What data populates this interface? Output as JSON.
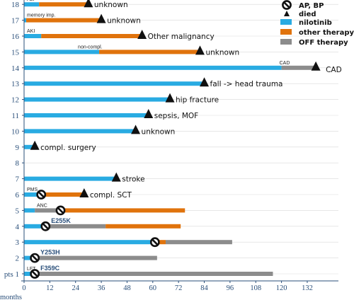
{
  "chart_data": {
    "type": "bar",
    "layout": "horizontal-swimmer",
    "xlabel": "months",
    "first_row_label": "pts 1",
    "xlim": [
      0,
      140
    ],
    "xticks": [
      0,
      12,
      24,
      36,
      48,
      60,
      72,
      84,
      96,
      108,
      120,
      132
    ],
    "legend": {
      "position": "top-right",
      "items": [
        {
          "key": "ap_bp",
          "label": "AP, BP",
          "symbol": "slashed-circle"
        },
        {
          "key": "died",
          "label": "died",
          "symbol": "triangle"
        },
        {
          "key": "nilotinib",
          "label": "nilotinib",
          "symbol": "bar"
        },
        {
          "key": "other",
          "label": "other therapy",
          "symbol": "bar"
        },
        {
          "key": "off",
          "label": "OFF therapy",
          "symbol": "bar"
        }
      ]
    },
    "colors": {
      "nilotinib": "#29abe2",
      "other": "#e0730c",
      "off": "#8c8c8c",
      "marker": "#111111",
      "axis": "#2a4f7a"
    },
    "patients": [
      {
        "id": "1",
        "segments": [
          {
            "phase": "nilotinib",
            "start": 0,
            "end": 7
          },
          {
            "phase": "off",
            "start": 7,
            "end": 116
          }
        ],
        "small_label": "LFT",
        "mutation": "F359C",
        "ap_bp": 5
      },
      {
        "id": "2",
        "segments": [
          {
            "phase": "nilotinib",
            "start": 0,
            "end": 7
          },
          {
            "phase": "off",
            "start": 7,
            "end": 62
          }
        ],
        "small_label": "",
        "mutation": "Y253H",
        "ap_bp": 5
      },
      {
        "id": "3",
        "segments": [
          {
            "phase": "nilotinib",
            "start": 0,
            "end": 63
          },
          {
            "phase": "other",
            "start": 63,
            "end": 66
          },
          {
            "phase": "off",
            "start": 66,
            "end": 97
          }
        ],
        "small_label": "",
        "mutation": "",
        "ap_bp": 61
      },
      {
        "id": "4",
        "segments": [
          {
            "phase": "nilotinib",
            "start": 0,
            "end": 11
          },
          {
            "phase": "off",
            "start": 11,
            "end": 38
          },
          {
            "phase": "other",
            "start": 38,
            "end": 73
          }
        ],
        "small_label": "",
        "mutation": "E255K",
        "ap_bp": 10
      },
      {
        "id": "5",
        "segments": [
          {
            "phase": "nilotinib",
            "start": 0,
            "end": 5
          },
          {
            "phase": "off",
            "start": 5,
            "end": 17
          },
          {
            "phase": "other",
            "start": 17,
            "end": 75
          }
        ],
        "small_label": "ANC",
        "mutation": "",
        "ap_bp": 17
      },
      {
        "id": "6",
        "segments": [
          {
            "phase": "nilotinib",
            "start": 0,
            "end": 7
          },
          {
            "phase": "other",
            "start": 7,
            "end": 28
          }
        ],
        "small_label": "PMS",
        "mutation": "",
        "ap_bp": 8,
        "died": 28,
        "end_label": "compl. SCT"
      },
      {
        "id": "7",
        "segments": [
          {
            "phase": "nilotinib",
            "start": 0,
            "end": 43
          }
        ],
        "small_label": "",
        "mutation": "",
        "died": 43,
        "end_label": "stroke"
      },
      {
        "id": "8",
        "segments": [],
        "small_label": "",
        "mutation": "",
        "end_label": ""
      },
      {
        "id": "9",
        "segments": [
          {
            "phase": "nilotinib",
            "start": 0,
            "end": 5
          }
        ],
        "small_label": "",
        "mutation": "",
        "died": 5,
        "end_label": "compl. surgery"
      },
      {
        "id": "10",
        "segments": [
          {
            "phase": "nilotinib",
            "start": 0,
            "end": 52
          }
        ],
        "small_label": "",
        "mutation": "",
        "died": 52,
        "end_label": "unknown"
      },
      {
        "id": "11",
        "segments": [
          {
            "phase": "nilotinib",
            "start": 0,
            "end": 58
          }
        ],
        "small_label": "",
        "mutation": "",
        "died": 58,
        "end_label": "sepsis, MOF"
      },
      {
        "id": "12",
        "segments": [
          {
            "phase": "nilotinib",
            "start": 0,
            "end": 68
          }
        ],
        "small_label": "",
        "mutation": "",
        "died": 68,
        "end_label": "hip fracture"
      },
      {
        "id": "13",
        "segments": [
          {
            "phase": "nilotinib",
            "start": 0,
            "end": 84
          }
        ],
        "small_label": "",
        "mutation": "",
        "died": 84,
        "end_label": "fall -> head trauma"
      },
      {
        "id": "14",
        "segments": [
          {
            "phase": "nilotinib",
            "start": 0,
            "end": 120
          },
          {
            "phase": "off",
            "start": 120,
            "end": 136
          }
        ],
        "small_label": "CAD",
        "mutation": "",
        "died": 136,
        "end_label": "CAD"
      },
      {
        "id": "15",
        "segments": [
          {
            "phase": "nilotinib",
            "start": 0,
            "end": 35
          },
          {
            "phase": "other",
            "start": 35,
            "end": 82
          }
        ],
        "small_label": "non-compl.",
        "mutation": "",
        "died": 82,
        "end_label": "unknown"
      },
      {
        "id": "16",
        "segments": [
          {
            "phase": "nilotinib",
            "start": 0,
            "end": 8
          },
          {
            "phase": "other",
            "start": 8,
            "end": 55
          }
        ],
        "small_label": "AKI",
        "mutation": "",
        "died": 55,
        "end_label": "Other malignancy"
      },
      {
        "id": "17",
        "segments": [
          {
            "phase": "nilotinib",
            "start": 0,
            "end": 1
          },
          {
            "phase": "other",
            "start": 1,
            "end": 36
          }
        ],
        "small_label": "memory imp.",
        "mutation": "",
        "died": 36,
        "end_label": "unknown"
      },
      {
        "id": "18",
        "segments": [
          {
            "phase": "nilotinib",
            "start": 0,
            "end": 7
          },
          {
            "phase": "other",
            "start": 7,
            "end": 30
          }
        ],
        "small_label": "ALP",
        "mutation": "",
        "died": 30,
        "end_label": "unknown"
      }
    ]
  }
}
